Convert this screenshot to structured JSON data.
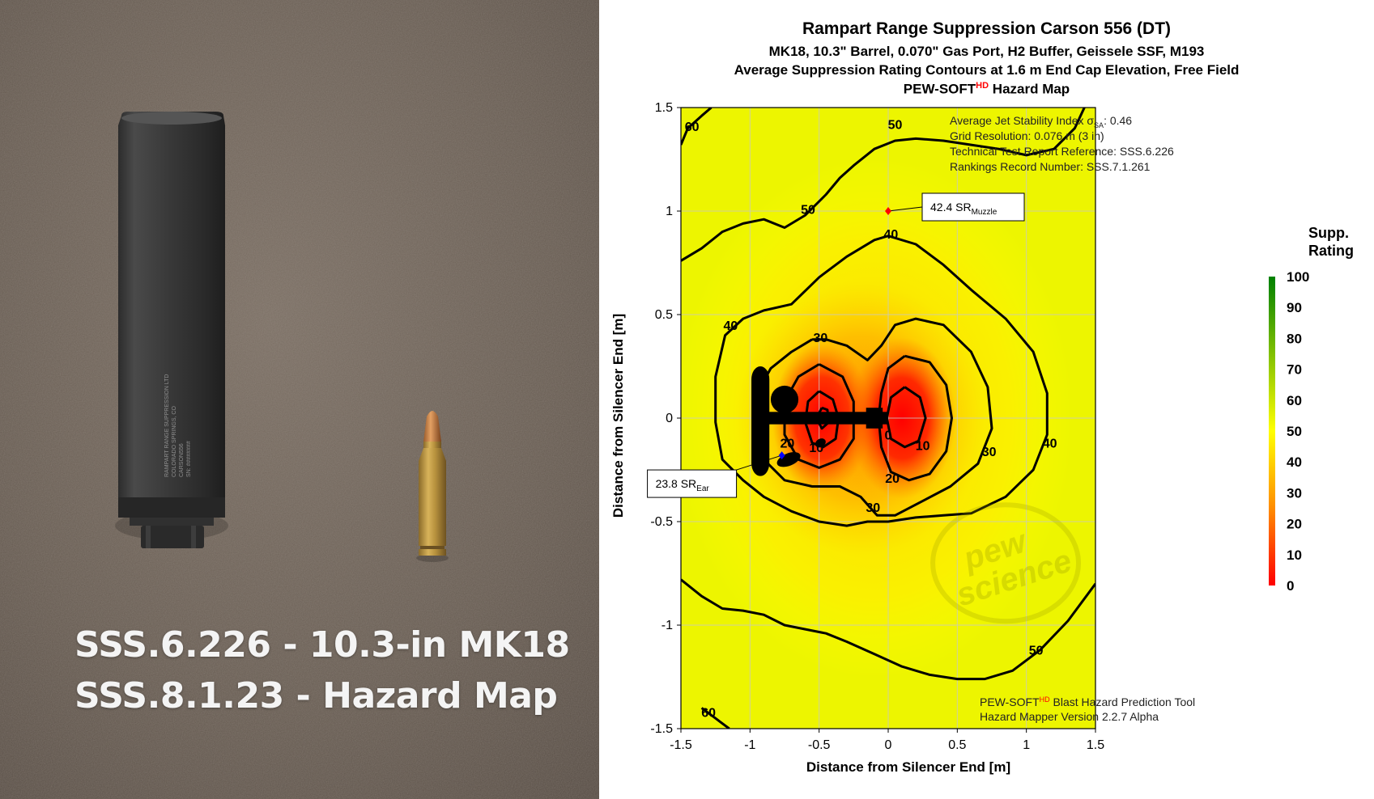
{
  "photo": {
    "caption_line1": "SSS.6.226 - 10.3-in MK18",
    "caption_line2": "SSS.8.1.23 - Hazard Map",
    "engraving": [
      "RAMPART RANGE SUPPRESSION LTD",
      "COLORADO SPRINGS, CO",
      "CARSON556",
      "SN: ########"
    ]
  },
  "chart_data": {
    "type": "heatmap",
    "title": "Rampart Range Suppression Carson 556 (DT)",
    "subtitle_lines": [
      "MK18, 10.3\" Barrel, 0.070\" Gas Port, H2 Buffer, Geissele SSF, M193",
      "Average Suppression Rating Contours at 1.6 m End Cap Elevation, Free Field"
    ],
    "title_line4_prefix": "PEW-SOFT",
    "title_line4_sup": "HD",
    "title_line4_suffix": " Hazard Map",
    "xlabel": "Distance from Silencer End [m]",
    "ylabel": "Distance from Silencer End [m]",
    "xlim": [
      -1.5,
      1.5
    ],
    "ylim": [
      -1.5,
      1.5
    ],
    "x_ticks": [
      -1.5,
      -1,
      -0.5,
      0,
      0.5,
      1,
      1.5
    ],
    "y_ticks": [
      -1.5,
      -1,
      -0.5,
      0,
      0.5,
      1,
      1.5
    ],
    "x_tick_labels": [
      "-1.5",
      "-1",
      "-0.5",
      "0",
      "0.5",
      "1",
      "1.5"
    ],
    "y_tick_labels": [
      "-1.5",
      "-1",
      "-0.5",
      "0",
      "0.5",
      "1",
      "1.5"
    ],
    "grid": true,
    "colorbar": {
      "title_line1": "Supp.",
      "title_line2": "Rating",
      "min": 0,
      "max": 100,
      "ticks": [
        0,
        10,
        20,
        30,
        40,
        50,
        60,
        70,
        80,
        90,
        100
      ],
      "tick_labels": [
        "0",
        "10",
        "20",
        "30",
        "40",
        "50",
        "60",
        "70",
        "80",
        "90",
        "100"
      ],
      "colors": [
        "#ff0000",
        "#ffaa00",
        "#ffff00",
        "#008000"
      ]
    },
    "contour_levels": [
      0,
      10,
      20,
      30,
      40,
      50,
      60
    ],
    "contour_labels": [
      {
        "text": "60",
        "x": -1.42,
        "y": 1.41
      },
      {
        "text": "50",
        "x": -0.58,
        "y": 1.01
      },
      {
        "text": "50",
        "x": 0.05,
        "y": 1.42
      },
      {
        "text": "40",
        "x": 0.02,
        "y": 0.89
      },
      {
        "text": "40",
        "x": -1.14,
        "y": 0.45
      },
      {
        "text": "40",
        "x": 1.17,
        "y": -0.12
      },
      {
        "text": "30",
        "x": -0.49,
        "y": 0.39
      },
      {
        "text": "30",
        "x": 0.73,
        "y": -0.16
      },
      {
        "text": "30",
        "x": -0.11,
        "y": -0.43
      },
      {
        "text": "20",
        "x": -0.73,
        "y": -0.12
      },
      {
        "text": "20",
        "x": 0.03,
        "y": -0.29
      },
      {
        "text": "10",
        "x": -0.52,
        "y": -0.14
      },
      {
        "text": "10",
        "x": 0.25,
        "y": -0.13
      },
      {
        "text": "0",
        "x": 0.0,
        "y": -0.08
      },
      {
        "text": "50",
        "x": 1.07,
        "y": -1.12
      },
      {
        "text": "60",
        "x": -1.3,
        "y": -1.42
      }
    ],
    "info_box": {
      "line1_prefix": "Average Jet Stability Index σ",
      "line1_sub": "SA",
      "line1_suffix": ": 0.46",
      "line2": "Grid Resolution: 0.076 m (3 in)",
      "line3": "Technical Test Report Reference: SSS.6.226",
      "line4": "Rankings Record Number: SSS.7.1.261"
    },
    "points": [
      {
        "name": "Muzzle",
        "x": 0.0,
        "y": 1.0,
        "value": 42.4,
        "label_value": "42.4 SR",
        "label_sub": "Muzzle",
        "color": "#ff0000"
      },
      {
        "name": "Ear",
        "x": -0.77,
        "y": -0.18,
        "value": 23.8,
        "label_value": "23.8 SR",
        "label_sub": "Ear",
        "color": "#0000ff"
      }
    ],
    "footer_prefix": "PEW-SOFT",
    "footer_sup": "HD",
    "footer_suffix": " Blast Hazard Prediction Tool",
    "footer_line2": "Hazard Mapper Version 2.2.7 Alpha",
    "watermark_line1": "pew",
    "watermark_line2": "science"
  }
}
